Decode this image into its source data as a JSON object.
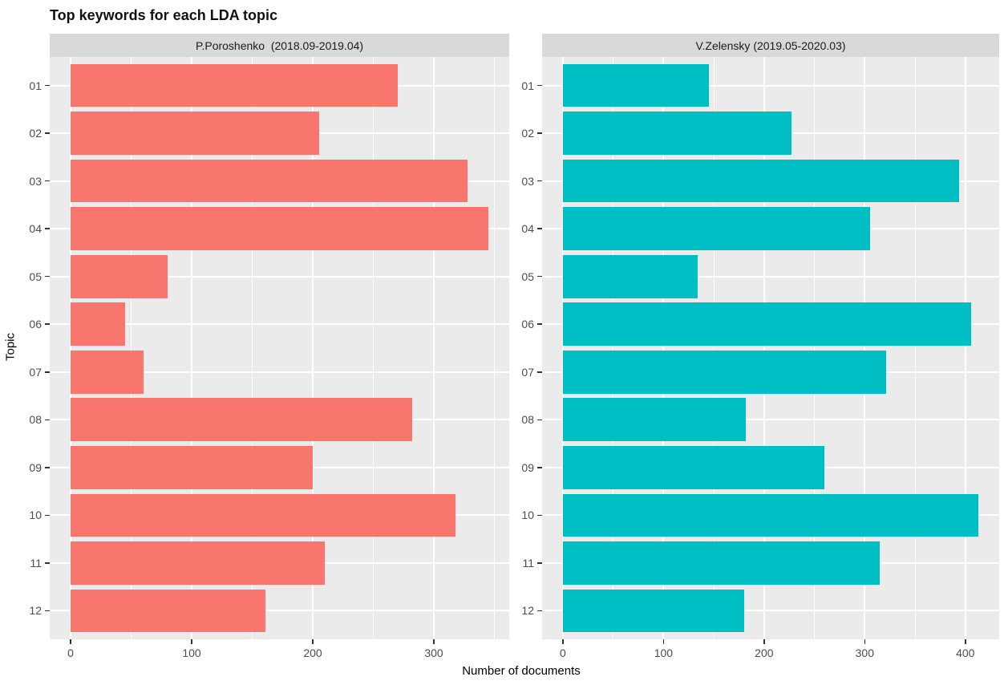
{
  "chart_data": {
    "type": "bar",
    "orientation": "horizontal",
    "title": "Top keywords for each LDA topic",
    "xlabel": "Number of documents",
    "ylabel": "Topic",
    "categories": [
      "01",
      "02",
      "03",
      "04",
      "05",
      "06",
      "07",
      "08",
      "09",
      "10",
      "11",
      "12"
    ],
    "legend": "none",
    "grid": "on",
    "panels": [
      {
        "label": "P.Poroshenko  (2018.09-2019.04)",
        "bar_color": "#F8766D",
        "values": [
          270,
          205,
          328,
          345,
          80,
          45,
          60,
          282,
          200,
          318,
          210,
          161
        ],
        "x_ticks": [
          0,
          100,
          200,
          300
        ],
        "x_minor_ticks": [
          50,
          150,
          250,
          350
        ],
        "xlim": [
          -17.25,
          362.25
        ]
      },
      {
        "label": "V.Zelensky (2019.05-2020.03)",
        "bar_color": "#00BFC4",
        "values": [
          145,
          227,
          394,
          305,
          134,
          406,
          321,
          182,
          260,
          413,
          315,
          180
        ],
        "x_ticks": [
          0,
          100,
          200,
          300,
          400
        ],
        "x_minor_ticks": [
          50,
          150,
          250,
          350
        ],
        "xlim": [
          -20.65,
          433.65
        ]
      }
    ],
    "colors": {
      "panel_background": "#EBEBEB",
      "strip_background": "#D9D9D9",
      "gridline": "#FFFFFF",
      "tick_text": "#4D4D4D",
      "tick_mark": "#333333",
      "title_text": "#111111",
      "strip_text": "#1A1A1A"
    }
  }
}
